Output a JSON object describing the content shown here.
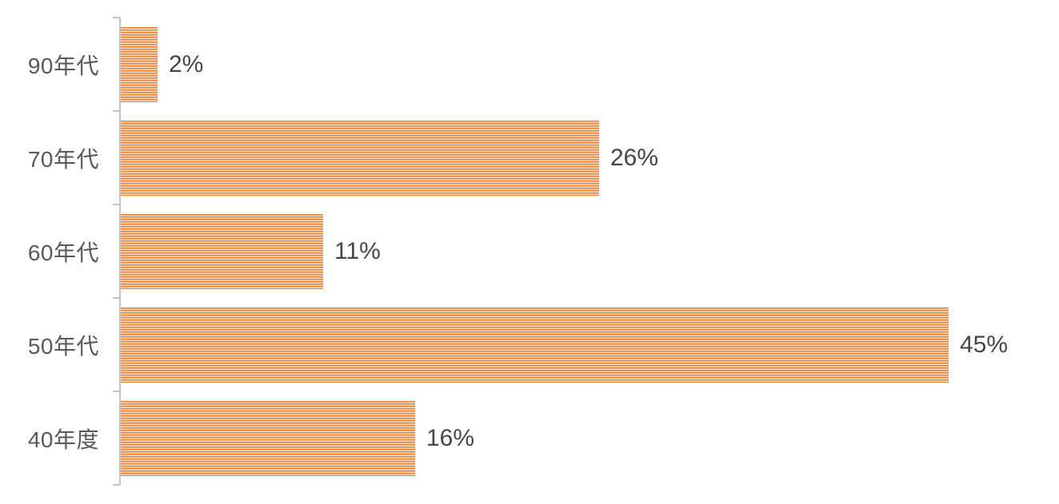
{
  "chart_data": {
    "type": "bar",
    "orientation": "horizontal",
    "title": "",
    "xlabel": "",
    "ylabel": "",
    "categories": [
      "90年代",
      "70年代",
      "60年代",
      "50年代",
      "40年度"
    ],
    "values": [
      2,
      26,
      11,
      45,
      16
    ],
    "value_labels": [
      "2%",
      "26%",
      "11%",
      "45%",
      "16%"
    ],
    "value_axis_range": [
      0,
      50
    ],
    "grid": false,
    "legend": null,
    "data_labels_position": "outside-end",
    "bar_pattern": "light-horizontal-stripes",
    "bar_stripe_color": "#e67e35",
    "bar_stripe_background": "#f9e2cc",
    "axis_color": "#c4c4c4",
    "category_label_color": "#595959",
    "value_label_color": "#464646"
  }
}
